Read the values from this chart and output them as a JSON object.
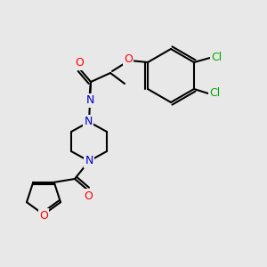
{
  "bg_color": "#e8e8e8",
  "bond_color": "#000000",
  "bond_width": 1.5,
  "atom_colors": {
    "O": "#ff0000",
    "N": "#0000cc",
    "Cl": "#00aa00",
    "C": "#000000"
  },
  "font_size": 9
}
